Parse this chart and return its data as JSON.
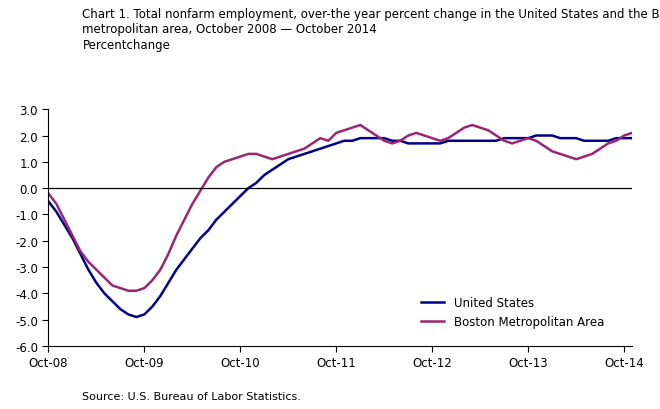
{
  "title_line1": "Chart 1. Total nonfarm employment, over-the year percent change in the United States and the Boston",
  "title_line2": "metropolitan area, October 2008 — October 2014",
  "ylabel": "Percentchange",
  "source": "Source: U.S. Bureau of Labor Statistics.",
  "ylim": [
    -6.0,
    3.0
  ],
  "yticks": [
    -6.0,
    -5.0,
    -4.0,
    -3.0,
    -2.0,
    -1.0,
    0.0,
    1.0,
    2.0,
    3.0
  ],
  "xtick_labels": [
    "Oct-08",
    "Oct-09",
    "Oct-10",
    "Oct-11",
    "Oct-12",
    "Oct-13",
    "Oct-14"
  ],
  "us_color": "#00008B",
  "boston_color": "#9B2671",
  "us_data": [
    -0.5,
    -0.9,
    -1.4,
    -1.9,
    -2.5,
    -3.1,
    -3.6,
    -4.0,
    -4.3,
    -4.6,
    -4.8,
    -4.9,
    -4.8,
    -4.5,
    -4.1,
    -3.6,
    -3.1,
    -2.7,
    -2.3,
    -1.9,
    -1.6,
    -1.2,
    -0.9,
    -0.6,
    -0.3,
    0.0,
    0.2,
    0.5,
    0.7,
    0.9,
    1.1,
    1.2,
    1.3,
    1.4,
    1.5,
    1.6,
    1.7,
    1.8,
    1.8,
    1.9,
    1.9,
    1.9,
    1.9,
    1.8,
    1.8,
    1.7,
    1.7,
    1.7,
    1.7,
    1.7,
    1.8,
    1.8,
    1.8,
    1.8,
    1.8,
    1.8,
    1.8,
    1.9,
    1.9,
    1.9,
    1.9,
    2.0,
    2.0,
    2.0,
    1.9,
    1.9,
    1.9,
    1.8,
    1.8,
    1.8,
    1.8,
    1.9,
    1.9,
    1.9
  ],
  "boston_data": [
    -0.2,
    -0.6,
    -1.2,
    -1.8,
    -2.4,
    -2.8,
    -3.1,
    -3.4,
    -3.7,
    -3.8,
    -3.9,
    -3.9,
    -3.8,
    -3.5,
    -3.1,
    -2.5,
    -1.8,
    -1.2,
    -0.6,
    -0.1,
    0.4,
    0.8,
    1.0,
    1.1,
    1.2,
    1.3,
    1.3,
    1.2,
    1.1,
    1.2,
    1.3,
    1.4,
    1.5,
    1.7,
    1.9,
    1.8,
    2.1,
    2.2,
    2.3,
    2.4,
    2.2,
    2.0,
    1.8,
    1.7,
    1.8,
    2.0,
    2.1,
    2.0,
    1.9,
    1.8,
    1.9,
    2.1,
    2.3,
    2.4,
    2.3,
    2.2,
    2.0,
    1.8,
    1.7,
    1.8,
    1.9,
    1.8,
    1.6,
    1.4,
    1.3,
    1.2,
    1.1,
    1.2,
    1.3,
    1.5,
    1.7,
    1.8,
    2.0,
    2.1
  ]
}
